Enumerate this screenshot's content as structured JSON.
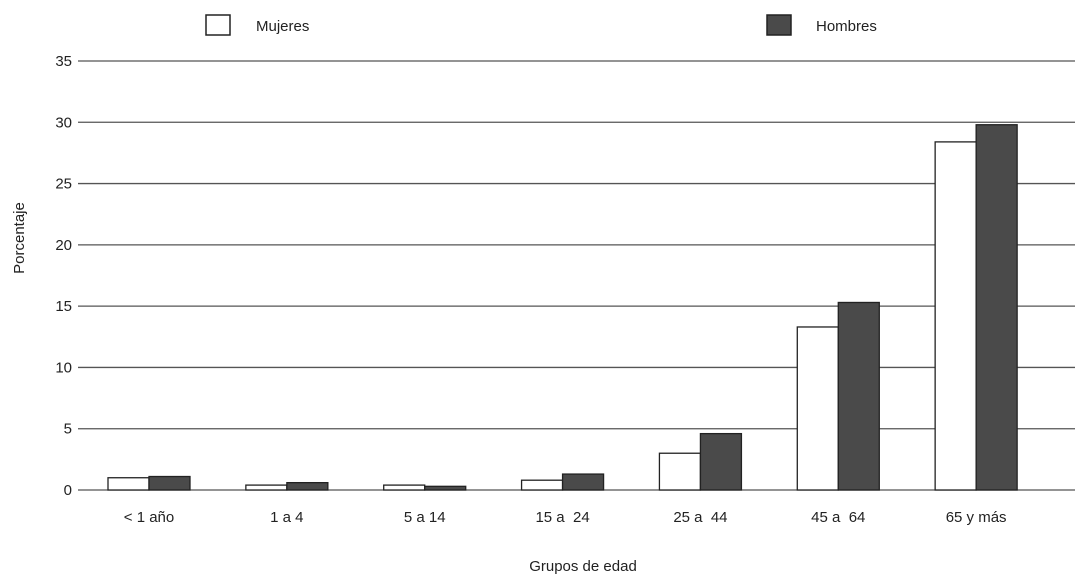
{
  "chart_data": {
    "type": "bar",
    "title": "",
    "xlabel": "Grupos de edad",
    "ylabel": "Porcentaje",
    "ylim": [
      0,
      35
    ],
    "yticks": [
      0,
      5,
      10,
      15,
      20,
      25,
      30,
      35
    ],
    "grid": true,
    "legend_position": "top",
    "categories": [
      "< 1 año",
      "1 a 4",
      "5 a 14",
      "15 a  24",
      "25 a  44",
      "45 a  64",
      "65 y más"
    ],
    "series": [
      {
        "name": "Mujeres",
        "color": "#ffffff",
        "values": [
          1.0,
          0.4,
          0.4,
          0.8,
          3.0,
          13.3,
          28.4
        ]
      },
      {
        "name": "Hombres",
        "color": "#4a4a4a",
        "values": [
          1.1,
          0.6,
          0.3,
          1.3,
          4.6,
          15.3,
          29.8
        ]
      }
    ]
  }
}
